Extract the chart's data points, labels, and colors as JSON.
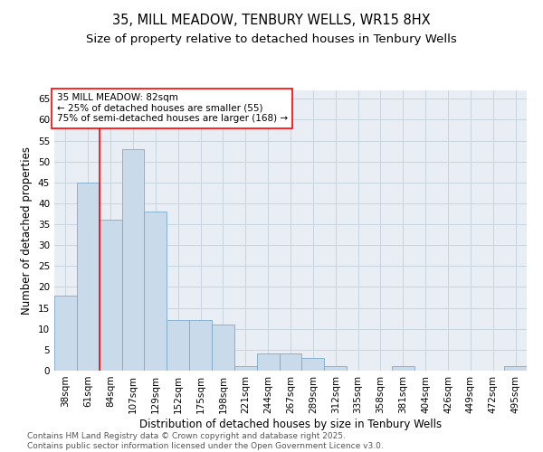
{
  "title_line1": "35, MILL MEADOW, TENBURY WELLS, WR15 8HX",
  "title_line2": "Size of property relative to detached houses in Tenbury Wells",
  "xlabel": "Distribution of detached houses by size in Tenbury Wells",
  "ylabel": "Number of detached properties",
  "categories": [
    "38sqm",
    "61sqm",
    "84sqm",
    "107sqm",
    "129sqm",
    "152sqm",
    "175sqm",
    "198sqm",
    "221sqm",
    "244sqm",
    "267sqm",
    "289sqm",
    "312sqm",
    "335sqm",
    "358sqm",
    "381sqm",
    "404sqm",
    "426sqm",
    "449sqm",
    "472sqm",
    "495sqm"
  ],
  "values": [
    18,
    45,
    36,
    53,
    38,
    12,
    12,
    11,
    1,
    4,
    4,
    3,
    1,
    0,
    0,
    1,
    0,
    0,
    0,
    0,
    1
  ],
  "bar_color": "#c9daea",
  "bar_edge_color": "#7aaac8",
  "red_line_x": 1.5,
  "annotation_text": "35 MILL MEADOW: 82sqm\n← 25% of detached houses are smaller (55)\n75% of semi-detached houses are larger (168) →",
  "annotation_box_color": "white",
  "annotation_box_edge_color": "red",
  "red_line_color": "red",
  "ylim": [
    0,
    67
  ],
  "yticks": [
    0,
    5,
    10,
    15,
    20,
    25,
    30,
    35,
    40,
    45,
    50,
    55,
    60,
    65
  ],
  "grid_color": "#c8d4de",
  "background_color": "#e8eef4",
  "footer_line1": "Contains HM Land Registry data © Crown copyright and database right 2025.",
  "footer_line2": "Contains public sector information licensed under the Open Government Licence v3.0.",
  "title_fontsize": 10.5,
  "subtitle_fontsize": 9.5,
  "axis_label_fontsize": 8.5,
  "tick_fontsize": 7.5,
  "annotation_fontsize": 7.5,
  "footer_fontsize": 6.5
}
